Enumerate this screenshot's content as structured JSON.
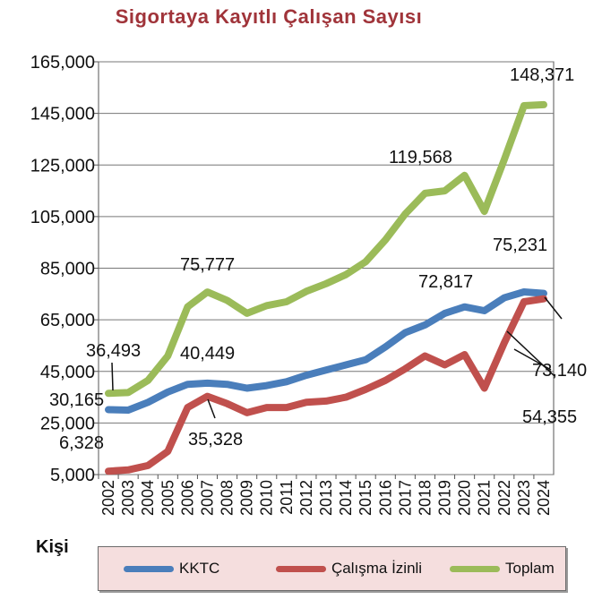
{
  "chart_data": {
    "type": "line",
    "title": "Sigortaya Kayıtlı Çalışan Sayısı",
    "ylabel": "Kişi",
    "xlabel": "",
    "ylim": [
      5000,
      165000
    ],
    "yticks": [
      "5,000",
      "25,000",
      "45,000",
      "65,000",
      "85,000",
      "105,000",
      "125,000",
      "145,000",
      "165,000"
    ],
    "grid": true,
    "legend_position": "bottom",
    "categories": [
      "2002",
      "2003",
      "2004",
      "2005",
      "2006",
      "2007",
      "2008",
      "2009",
      "2010",
      "2011",
      "2012",
      "2013",
      "2014",
      "2015",
      "2016",
      "2017",
      "2018",
      "2019",
      "2020",
      "2021",
      "2022",
      "2023",
      "2024"
    ],
    "series": [
      {
        "name": "KKTC",
        "color": "#4a7ebb",
        "values": [
          30165,
          30000,
          33000,
          37000,
          40000,
          40449,
          40000,
          38500,
          39500,
          41000,
          43500,
          45500,
          47500,
          49500,
          54500,
          60000,
          63000,
          67500,
          70000,
          68500,
          73500,
          75800,
          75231
        ]
      },
      {
        "name": "Çalışma İzinli",
        "color": "#c0504d",
        "values": [
          6328,
          6800,
          8500,
          14000,
          31000,
          35328,
          32500,
          29000,
          31000,
          31000,
          33000,
          33500,
          35000,
          38000,
          41500,
          46000,
          51000,
          47500,
          51500,
          38500,
          56000,
          72000,
          73140
        ]
      },
      {
        "name": "Toplam",
        "color": "#9bbb59",
        "values": [
          36493,
          36800,
          41500,
          51000,
          70000,
          75777,
          72500,
          67500,
          70500,
          72000,
          76000,
          79000,
          82500,
          87500,
          96000,
          106000,
          114000,
          115000,
          121000,
          107000,
          127000,
          148000,
          148371
        ]
      }
    ],
    "annotations": [
      "36,493",
      "30,165",
      "6,328",
      "75,777",
      "40,449",
      "35,328",
      "119,568",
      "148,371",
      "75,231",
      "72,817",
      "73,140",
      "54,355"
    ]
  },
  "legend": {
    "kktc": "KKTC",
    "izinli": "Çalışma İzinli",
    "toplam": "Toplam"
  }
}
